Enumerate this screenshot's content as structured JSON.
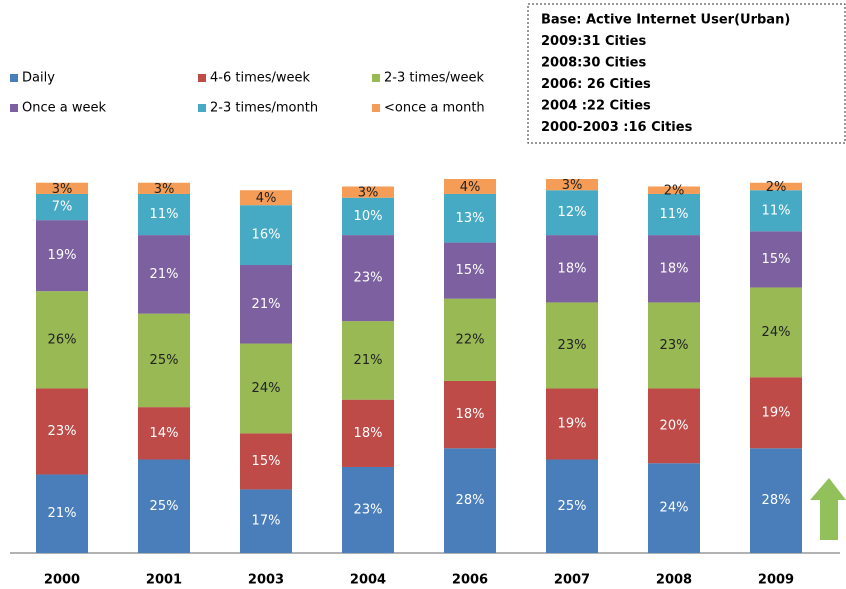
{
  "chart_data": {
    "type": "stacked_bar",
    "categories": [
      "2000",
      "2001",
      "2003",
      "2004",
      "2006",
      "2007",
      "2008",
      "2009"
    ],
    "series": [
      {
        "name": "Daily",
        "color": "#4a7ebb",
        "values": [
          21,
          25,
          17,
          23,
          28,
          25,
          24,
          28
        ],
        "value_labels": [
          "21%",
          "25%",
          "17%",
          "23%",
          "28%",
          "25%",
          "24%",
          "28%"
        ]
      },
      {
        "name": "4-6 times/week",
        "color": "#be4b48",
        "values": [
          23,
          14,
          15,
          18,
          18,
          19,
          20,
          19
        ],
        "value_labels": [
          "23%",
          "14%",
          "15%",
          "18%",
          "18%",
          "19%",
          "20%",
          "19%"
        ]
      },
      {
        "name": "2-3 times/week",
        "color": "#98b954",
        "values": [
          26,
          25,
          24,
          21,
          22,
          23,
          23,
          24
        ],
        "value_labels": [
          "26%",
          "25%",
          "24%",
          "21%",
          "22%",
          "23%",
          "23%",
          "24%"
        ]
      },
      {
        "name": "Once a week",
        "color": "#7d60a0",
        "values": [
          19,
          21,
          21,
          23,
          15,
          18,
          18,
          15
        ],
        "value_labels": [
          "19%",
          "21%",
          "21%",
          "23%",
          "15%",
          "18%",
          "18%",
          "15%"
        ]
      },
      {
        "name": "2-3 times/month",
        "color": "#46aac5",
        "values": [
          7,
          11,
          16,
          10,
          13,
          12,
          11,
          11
        ],
        "value_labels": [
          "7%",
          "11%",
          "16%",
          "10%",
          "13%",
          "12%",
          "11%",
          "11%"
        ]
      },
      {
        "name": "<once a month",
        "color": "#f59d56",
        "values": [
          3,
          3,
          4,
          3,
          4,
          3,
          2,
          2
        ],
        "value_labels": [
          "3%",
          "3%",
          "4%",
          "3%",
          "4%",
          "3%",
          "2%",
          "2%"
        ]
      }
    ],
    "annotation_lines": [
      "Base: Active Internet User(Urban)",
      "2009:31 Cities",
      "2008:30 Cities",
      "2006: 26 Cities",
      "2004 :22 Cities",
      "2000-2003 :16 Cities"
    ],
    "legend": "top-left"
  }
}
